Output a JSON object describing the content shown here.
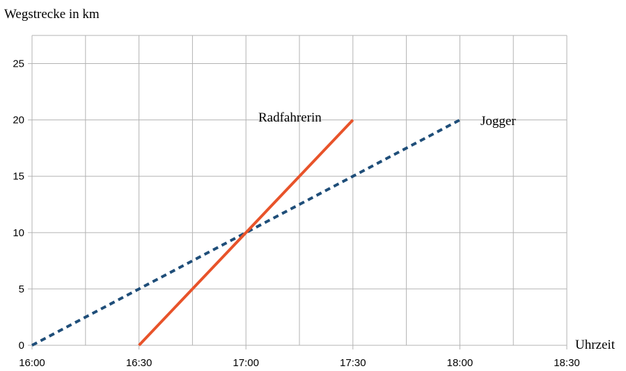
{
  "chart_data": {
    "type": "line",
    "ylabel": "Wegstrecke in km",
    "xlabel": "Uhrzeit",
    "x_ticks": [
      "16:00",
      "16:30",
      "17:00",
      "17:30",
      "18:00",
      "18:30"
    ],
    "y_ticks": [
      "0",
      "5",
      "10",
      "15",
      "20",
      "25"
    ],
    "xlim": [
      "16:00",
      "18:30"
    ],
    "ylim": [
      0,
      27.5
    ],
    "grid": true,
    "series": [
      {
        "name": "Jogger",
        "color": "#1f4e79",
        "dash": "dashed",
        "x": [
          "16:00",
          "18:00"
        ],
        "y": [
          0,
          20
        ]
      },
      {
        "name": "Radfahrerin",
        "color": "#e8532a",
        "dash": "solid",
        "x": [
          "16:30",
          "17:30"
        ],
        "y": [
          0,
          20
        ]
      }
    ]
  }
}
